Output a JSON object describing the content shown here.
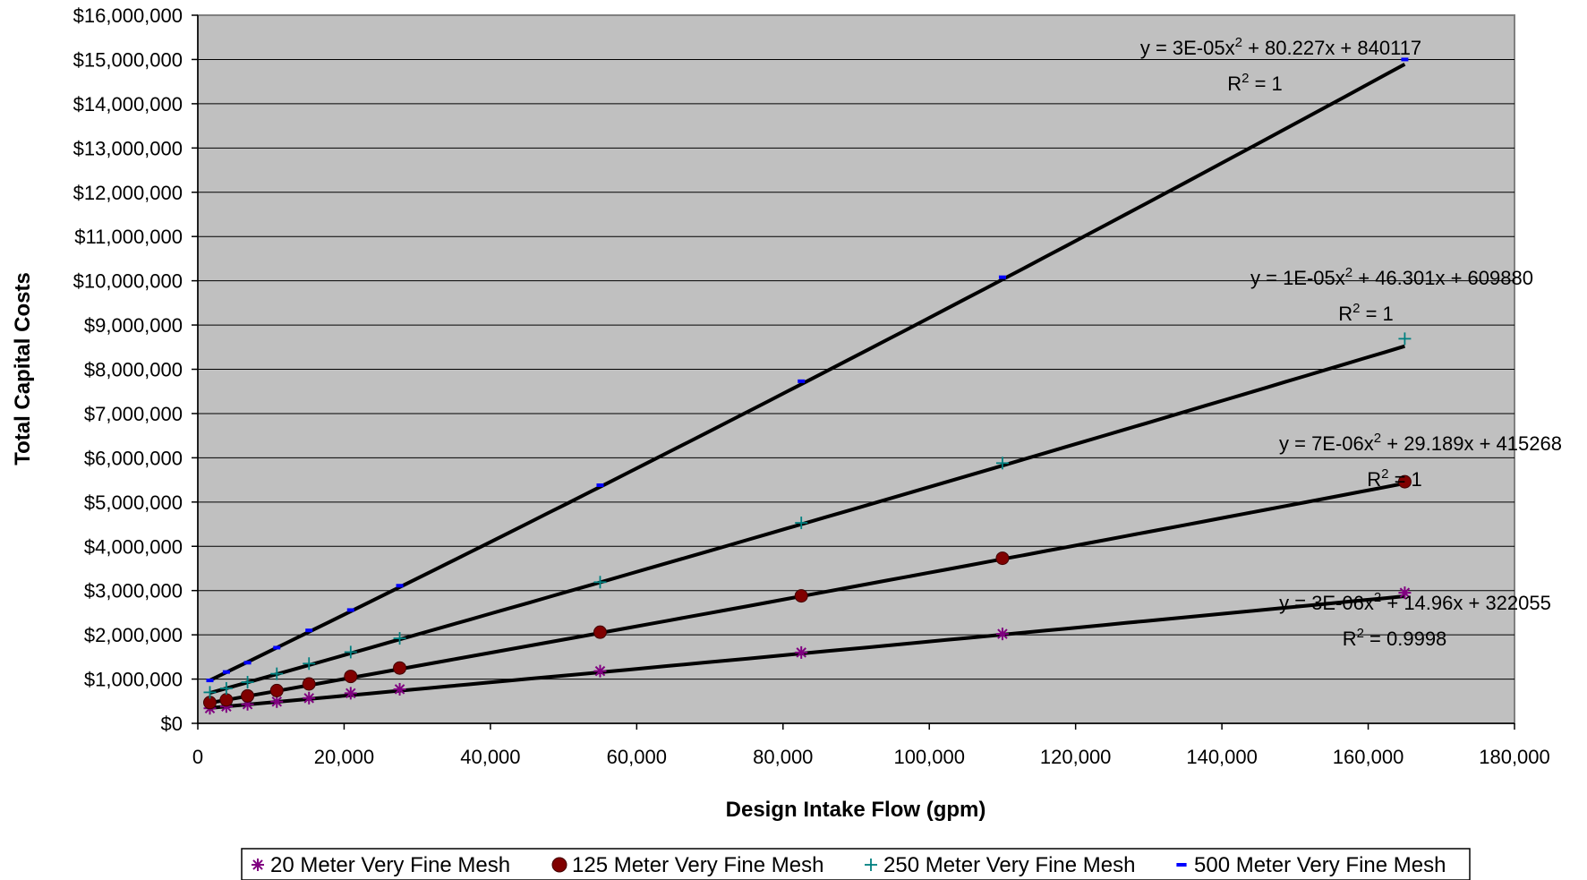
{
  "chart_data": {
    "type": "scatter",
    "xlabel": "Design Intake Flow (gpm)",
    "ylabel": "Total Capital Costs",
    "xlim": [
      0,
      180000
    ],
    "ylim": [
      0,
      16000000
    ],
    "x_ticks": [
      "0",
      "20,000",
      "40,000",
      "60,000",
      "80,000",
      "100,000",
      "120,000",
      "140,000",
      "160,000",
      "180,000"
    ],
    "y_ticks": [
      "$0",
      "$1,000,000",
      "$2,000,000",
      "$3,000,000",
      "$4,000,000",
      "$5,000,000",
      "$6,000,000",
      "$7,000,000",
      "$8,000,000",
      "$9,000,000",
      "$10,000,000",
      "$11,000,000",
      "$12,000,000",
      "$13,000,000",
      "$14,000,000",
      "$15,000,000",
      "$16,000,000"
    ],
    "grid": true,
    "plot_background": "#C0C0C0",
    "legend_position": "bottom",
    "series": [
      {
        "name": "20 Meter Very Fine Mesh",
        "marker": "asterisk",
        "color": "#800080",
        "x": [
          1650,
          3900,
          6800,
          10800,
          15200,
          20900,
          27600,
          55000,
          82500,
          110000,
          165000
        ],
        "y": [
          340000,
          380000,
          430000,
          490000,
          570000,
          680000,
          770000,
          1180000,
          1600000,
          2020000,
          2950000
        ],
        "trendline": {
          "a": 3e-06,
          "b": 14.96,
          "c": 322055
        },
        "equation_label": {
          "pre": "y = 3E-06x",
          "sup": "2",
          "post": " + 14.96x + 322055"
        },
        "r2_label": {
          "pre": "R",
          "sup": "2",
          "post": " = 0.9998"
        }
      },
      {
        "name": "125 Meter Very Fine Mesh",
        "marker": "circle",
        "color": "#800000",
        "x": [
          1650,
          3900,
          6800,
          10800,
          15200,
          20900,
          27600,
          55000,
          82500,
          110000,
          165000
        ],
        "y": [
          470000,
          530000,
          620000,
          740000,
          890000,
          1060000,
          1250000,
          2060000,
          2880000,
          3730000,
          5460000
        ],
        "trendline": {
          "a": 7e-06,
          "b": 29.189,
          "c": 415268
        },
        "equation_label": {
          "pre": "y = 7E-06x",
          "sup": "2",
          "post": " + 29.189x + 415268"
        },
        "r2_label": {
          "pre": "R",
          "sup": "2",
          "post": " = 1"
        }
      },
      {
        "name": "250 Meter Very Fine Mesh",
        "marker": "plus",
        "color": "#008080",
        "x": [
          1650,
          3900,
          6800,
          10800,
          15200,
          20900,
          27600,
          55000,
          82500,
          110000,
          165000
        ],
        "y": [
          700000,
          790000,
          930000,
          1120000,
          1350000,
          1610000,
          1920000,
          3190000,
          4530000,
          5880000,
          8690000
        ],
        "trendline": {
          "a": 1e-05,
          "b": 46.301,
          "c": 609880
        },
        "equation_label": {
          "pre": "y = 1E-05x",
          "sup": "2",
          "post": " + 46.301x + 609880"
        },
        "r2_label": {
          "pre": "R",
          "sup": "2",
          "post": " = 1"
        }
      },
      {
        "name": "500 Meter Very Fine Mesh",
        "marker": "dash",
        "color": "#0000FF",
        "x": [
          1650,
          3900,
          6800,
          10800,
          15200,
          20900,
          27600,
          55000,
          82500,
          110000,
          165000
        ],
        "y": [
          970000,
          1160000,
          1370000,
          1710000,
          2100000,
          2560000,
          3110000,
          5380000,
          7730000,
          10080000,
          15000000
        ],
        "trendline": {
          "a": 3e-05,
          "b": 80.227,
          "c": 840117
        },
        "equation_label": {
          "pre": "y = 3E-05x",
          "sup": "2",
          "post": " + 80.227x + 840117"
        },
        "r2_label": {
          "pre": "R",
          "sup": "2",
          "post": " = 1"
        }
      }
    ]
  }
}
